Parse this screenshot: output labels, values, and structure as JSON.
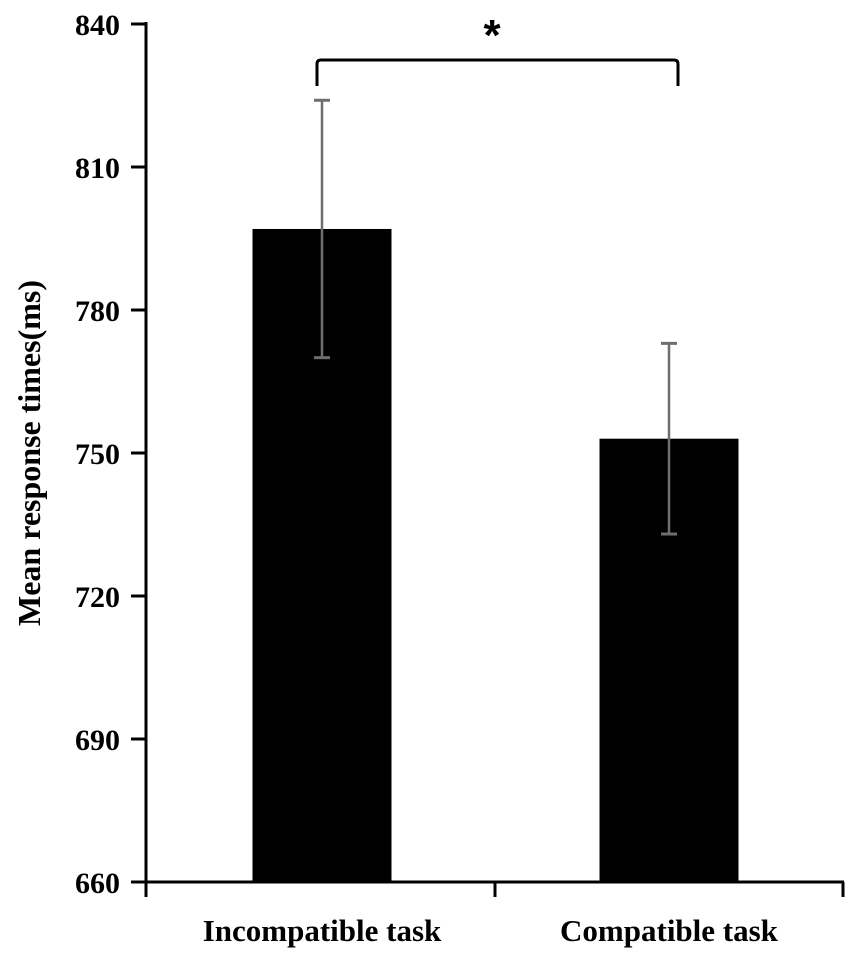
{
  "chart_data": {
    "type": "bar",
    "title": "",
    "xlabel": "",
    "ylabel": "Mean response times(ms)",
    "ylim": [
      660,
      840
    ],
    "yticks": [
      660,
      690,
      720,
      750,
      780,
      810,
      840
    ],
    "categories": [
      "Incompatible task",
      "Compatible task"
    ],
    "values": [
      797,
      753
    ],
    "error_bars": [
      {
        "lower": 770,
        "upper": 824
      },
      {
        "lower": 733,
        "upper": 773
      }
    ],
    "bar_color": "#000000",
    "error_bar_color": "#6e6e6e",
    "grid": false,
    "legend": null,
    "annotations": [
      {
        "type": "significance-bracket",
        "between": [
          "Incompatible task",
          "Compatible task"
        ],
        "label": "*"
      }
    ]
  },
  "axis": {
    "ylabel": "Mean response times(ms)",
    "yticks": [
      "660",
      "690",
      "720",
      "750",
      "780",
      "810",
      "840"
    ],
    "categories": [
      "Incompatible task",
      "Compatible task"
    ]
  },
  "significance": {
    "label": "*"
  }
}
